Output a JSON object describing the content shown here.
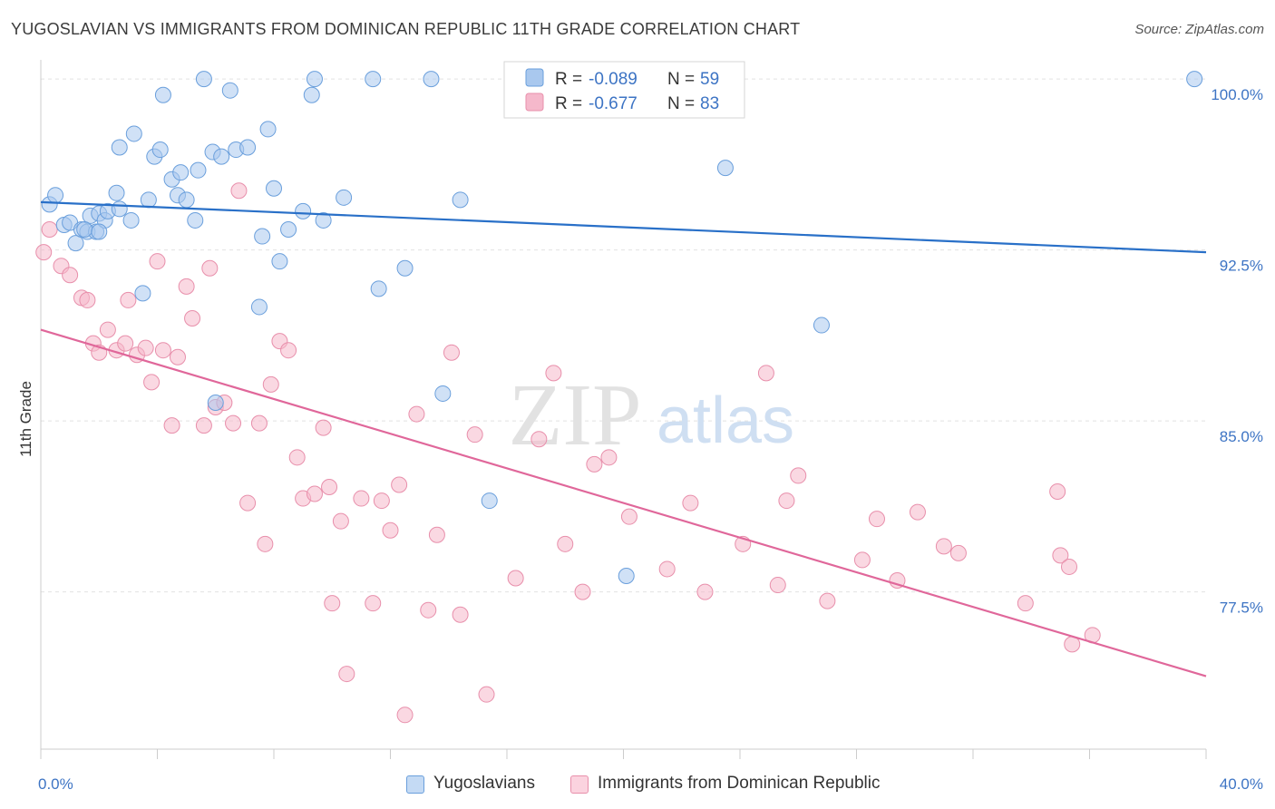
{
  "header": {
    "title": "YUGOSLAVIAN VS IMMIGRANTS FROM DOMINICAN REPUBLIC 11TH GRADE CORRELATION CHART",
    "source": "Source: ZipAtlas.com"
  },
  "watermark": {
    "zip": "ZIP",
    "atlas": "atlas"
  },
  "legend_stats": [
    {
      "r_label": "R =",
      "r_value": "-0.089",
      "n_label": "N =",
      "n_value": "59"
    },
    {
      "r_label": "R =",
      "r_value": "-0.677",
      "n_label": "N =",
      "n_value": "83"
    }
  ],
  "colors": {
    "blue_fill": "#a9c8ee",
    "blue_stroke": "#6a9fdc",
    "blue_line": "#2970c8",
    "pink_fill": "#f5b8cb",
    "pink_stroke": "#e88fab",
    "pink_line": "#e0679a",
    "axis_label": "#3d74c4",
    "grid": "#e2e2e2"
  },
  "chart_data": {
    "type": "scatter",
    "title": "YUGOSLAVIAN VS IMMIGRANTS FROM DOMINICAN REPUBLIC 11TH GRADE CORRELATION CHART",
    "xlabel": "",
    "ylabel": "11th Grade",
    "xlim": [
      0,
      40
    ],
    "ylim": [
      70.6,
      101
    ],
    "x_tick_labels": [
      {
        "value": 0,
        "label": "0.0%"
      },
      {
        "value": 40,
        "label": "40.0%"
      }
    ],
    "y_tick_labels": [
      {
        "value": 100,
        "label": "100.0%"
      },
      {
        "value": 92.5,
        "label": "92.5%"
      },
      {
        "value": 85,
        "label": "85.0%"
      },
      {
        "value": 77.5,
        "label": "77.5%"
      }
    ],
    "grid": true,
    "legend": "bottom",
    "series": [
      {
        "name": "Yugoslavians",
        "color": "#a9c8ee",
        "trend": {
          "x": [
            0,
            40
          ],
          "y": [
            94.6,
            92.4
          ]
        },
        "x": [
          0.3,
          0.5,
          0.8,
          1.0,
          1.2,
          1.4,
          1.6,
          1.7,
          1.9,
          2.0,
          2.2,
          2.3,
          2.6,
          2.7,
          3.1,
          3.2,
          3.5,
          3.7,
          3.9,
          4.1,
          4.2,
          4.5,
          4.7,
          4.8,
          5.0,
          5.3,
          5.4,
          5.6,
          5.9,
          6.0,
          6.2,
          6.5,
          6.7,
          7.1,
          7.5,
          7.6,
          7.8,
          8.0,
          8.2,
          8.5,
          9.0,
          9.3,
          9.4,
          9.7,
          10.4,
          11.4,
          11.6,
          12.5,
          13.4,
          13.8,
          14.4,
          15.4,
          20.1,
          23.5,
          26.8,
          1.5,
          2.0,
          2.7,
          39.6
        ],
        "y": [
          94.5,
          94.9,
          93.6,
          93.7,
          92.8,
          93.4,
          93.3,
          94.0,
          93.3,
          94.1,
          93.8,
          94.2,
          95.0,
          97.0,
          93.8,
          97.6,
          90.6,
          94.7,
          96.6,
          96.9,
          99.3,
          95.6,
          94.9,
          95.9,
          94.7,
          93.8,
          96.0,
          100.0,
          96.8,
          85.8,
          96.6,
          99.5,
          96.9,
          97.0,
          90.0,
          93.1,
          97.8,
          95.2,
          92.0,
          93.4,
          94.2,
          99.3,
          100.0,
          93.8,
          94.8,
          100.0,
          90.8,
          91.7,
          100.0,
          86.2,
          94.7,
          81.5,
          78.2,
          96.1,
          89.2,
          93.4,
          93.3,
          94.3,
          100.0
        ]
      },
      {
        "name": "Immigrants from Dominican Republic",
        "color": "#f5b8cb",
        "trend": {
          "x": [
            0,
            40
          ],
          "y": [
            89.0,
            73.8
          ]
        },
        "x": [
          0.1,
          0.3,
          0.7,
          1.0,
          1.4,
          1.6,
          1.8,
          2.0,
          2.3,
          2.6,
          2.9,
          3.0,
          3.3,
          3.6,
          3.8,
          4.0,
          4.2,
          4.5,
          4.7,
          5.0,
          5.2,
          5.6,
          5.8,
          6.0,
          6.3,
          6.6,
          6.8,
          7.1,
          7.5,
          7.7,
          7.9,
          8.2,
          8.5,
          8.8,
          9.0,
          9.4,
          9.7,
          9.9,
          10.0,
          10.3,
          10.5,
          11.0,
          11.4,
          11.7,
          12.0,
          12.3,
          12.5,
          12.9,
          13.3,
          13.6,
          14.1,
          14.4,
          14.9,
          15.3,
          16.3,
          17.1,
          17.6,
          18.0,
          18.6,
          19.0,
          19.5,
          20.2,
          21.5,
          22.3,
          22.8,
          24.1,
          24.9,
          25.3,
          25.6,
          26.0,
          27.0,
          28.2,
          28.7,
          29.4,
          30.1,
          31.0,
          31.5,
          33.8,
          34.9,
          35.0,
          35.3,
          35.4,
          36.1
        ],
        "y": [
          92.4,
          93.4,
          91.8,
          91.4,
          90.4,
          90.3,
          88.4,
          88.0,
          89.0,
          88.1,
          88.4,
          90.3,
          87.9,
          88.2,
          86.7,
          92.0,
          88.1,
          84.8,
          87.8,
          90.9,
          89.5,
          84.8,
          91.7,
          85.6,
          85.8,
          84.9,
          95.1,
          81.4,
          84.9,
          79.6,
          86.6,
          88.5,
          88.1,
          83.4,
          81.6,
          81.8,
          84.7,
          82.1,
          77.0,
          80.6,
          73.9,
          81.6,
          77.0,
          81.5,
          80.2,
          82.2,
          72.1,
          85.3,
          76.7,
          80.0,
          88.0,
          76.5,
          84.4,
          73.0,
          78.1,
          84.2,
          87.1,
          79.6,
          77.5,
          83.1,
          83.4,
          80.8,
          78.5,
          81.4,
          77.5,
          79.6,
          87.1,
          77.8,
          81.5,
          82.6,
          77.1,
          78.9,
          80.7,
          78.0,
          81.0,
          79.5,
          79.2,
          77.0,
          81.9,
          79.1,
          78.6,
          75.2,
          75.6
        ]
      }
    ]
  },
  "legend_bottom": [
    {
      "label": "Yugoslavians"
    },
    {
      "label": "Immigrants from Dominican Republic"
    }
  ]
}
